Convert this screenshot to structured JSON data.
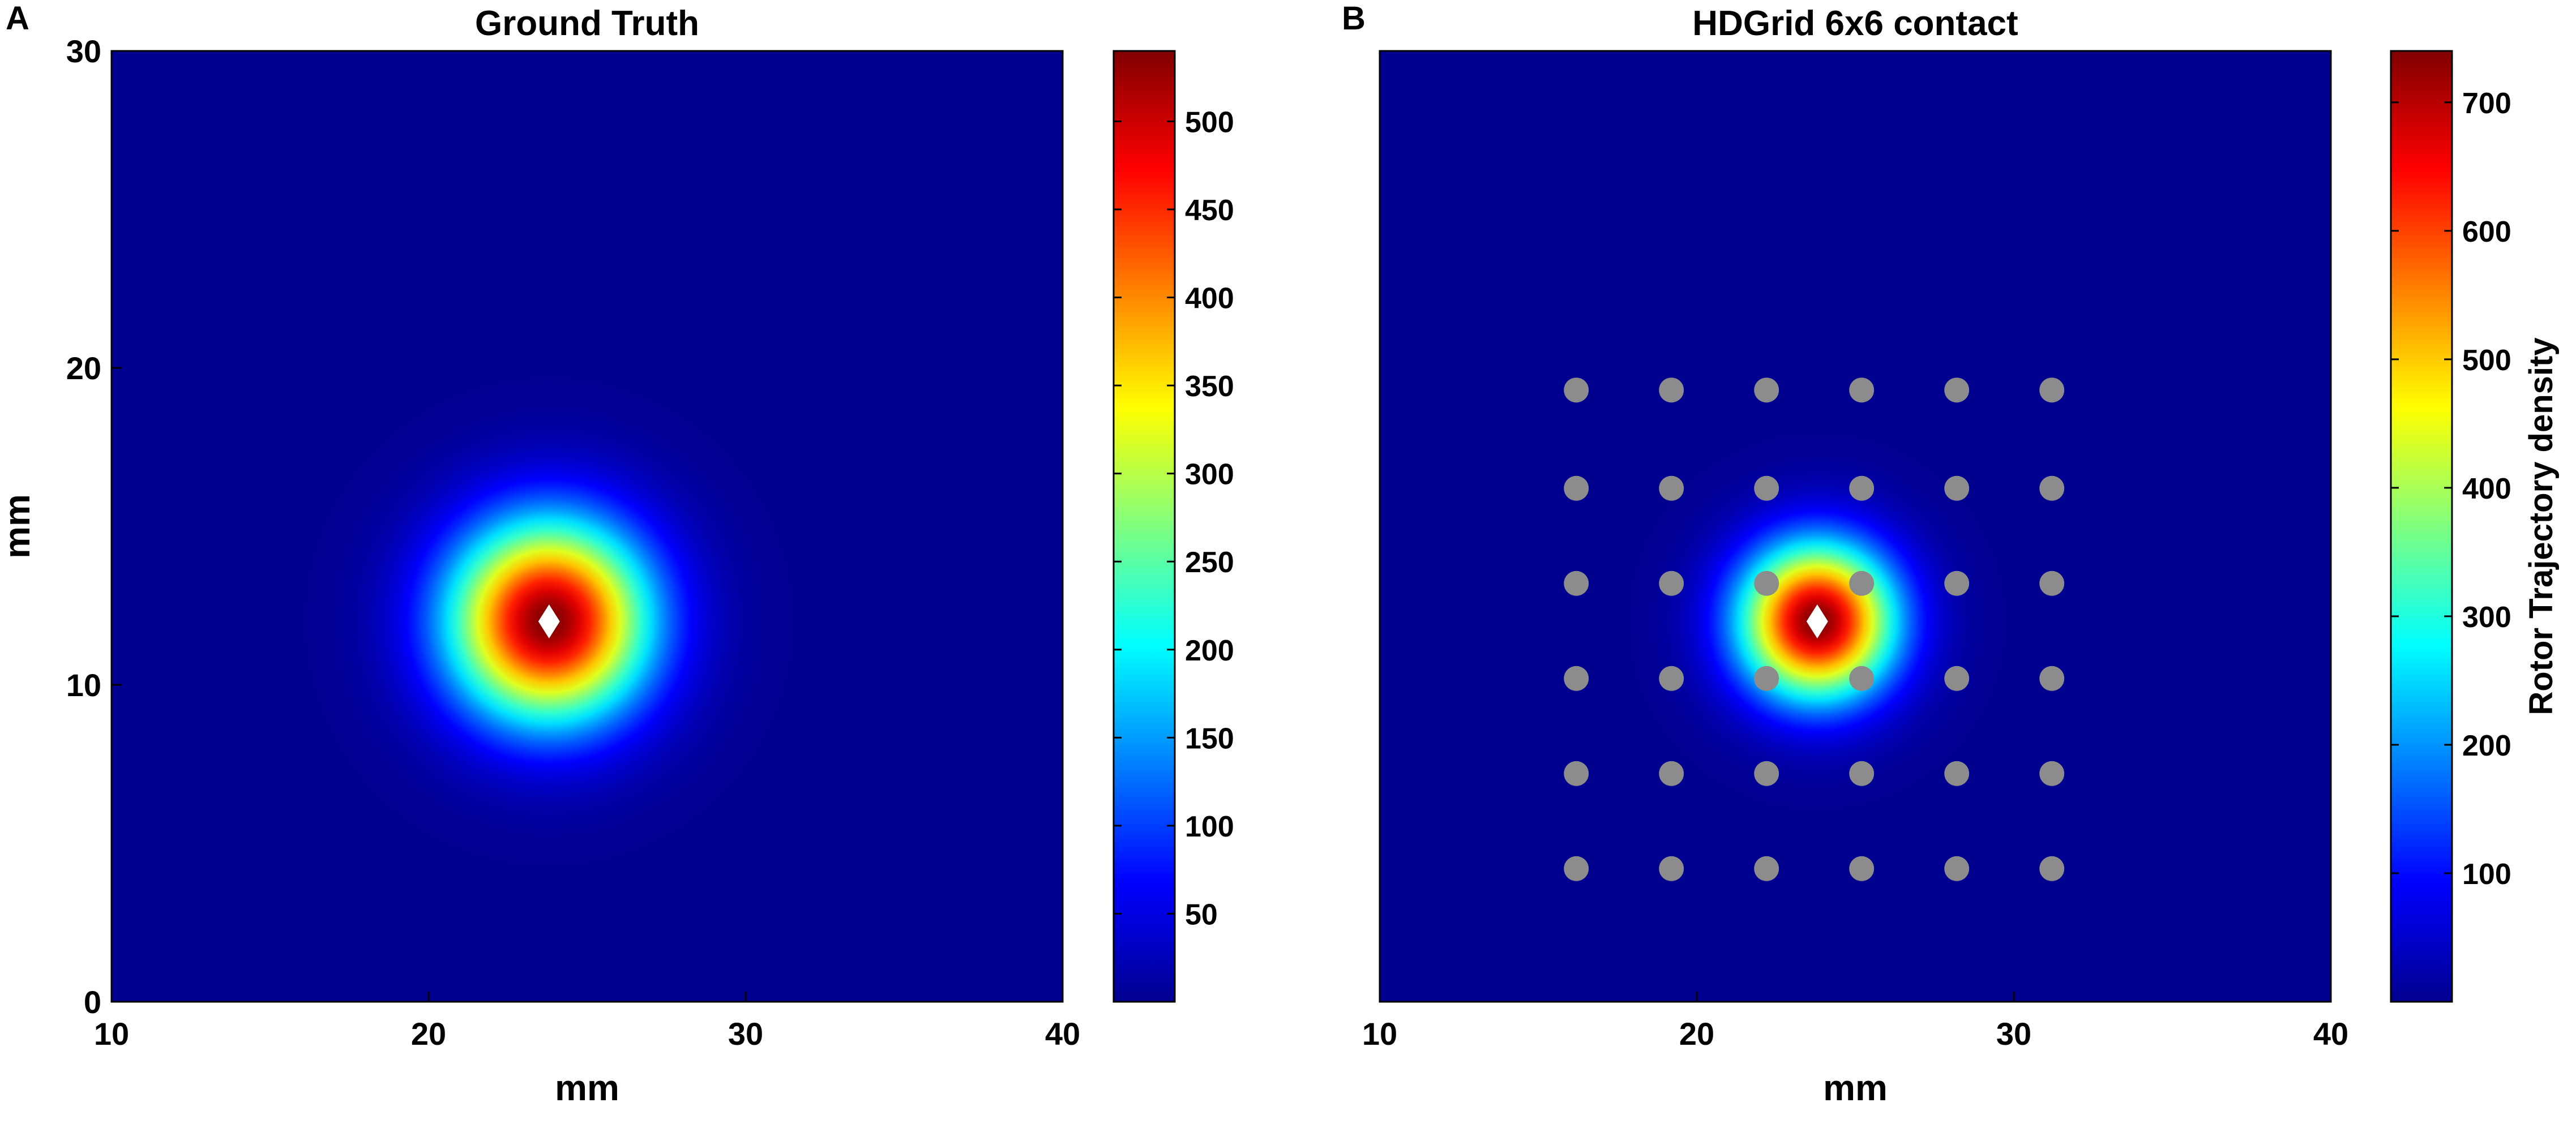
{
  "chart_data": [
    {
      "type": "heatmap",
      "panel_label": "A",
      "title": "Ground Truth",
      "xlabel": "mm",
      "ylabel": "mm",
      "xlim": [
        10,
        40
      ],
      "ylim": [
        0,
        30
      ],
      "x_ticks": [
        10,
        20,
        30,
        40
      ],
      "y_ticks": [
        0,
        10,
        20,
        30
      ],
      "colormap": "jet",
      "background_color": "#00008f",
      "peak": {
        "x": 23.8,
        "y": 12,
        "value": 540,
        "spread_sd_mm": 2.2
      },
      "color_range": [
        0,
        540
      ],
      "colorbar_ticks": [
        50,
        100,
        150,
        200,
        250,
        300,
        350,
        400,
        450,
        500
      ],
      "colorbar_label": "",
      "markers": [
        {
          "shape": "diamond",
          "color": "#ffffff",
          "x": 23.8,
          "y": 12
        }
      ],
      "electrodes": []
    },
    {
      "type": "heatmap",
      "panel_label": "B",
      "title": "HDGrid 6x6 contact",
      "xlabel": "mm",
      "ylabel": "",
      "xlim": [
        10,
        40
      ],
      "ylim": [
        0,
        30
      ],
      "x_ticks": [
        10,
        20,
        30,
        40
      ],
      "y_ticks": [],
      "colormap": "jet",
      "background_color": "#00008f",
      "peak": {
        "x": 23.8,
        "y": 12,
        "value": 740,
        "spread_sd_mm": 1.7
      },
      "color_range": [
        0,
        740
      ],
      "colorbar_ticks": [
        100,
        200,
        300,
        400,
        500,
        600,
        700
      ],
      "colorbar_label": "Rotor Trajectory density",
      "markers": [
        {
          "shape": "diamond",
          "color": "#ffffff",
          "x": 23.8,
          "y": 12
        }
      ],
      "electrodes": {
        "color": "#8c8c8c",
        "x": [
          16.2,
          19.2,
          22.2,
          25.2,
          28.2,
          31.2
        ],
        "y": [
          19.3,
          16.2,
          13.2,
          10.2,
          7.2,
          4.2
        ]
      }
    }
  ]
}
